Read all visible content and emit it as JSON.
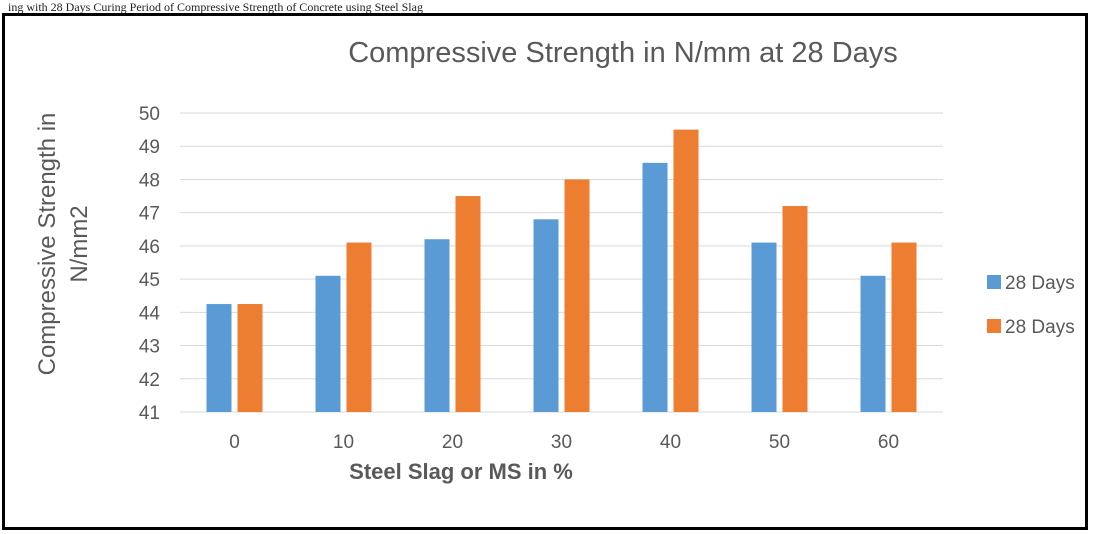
{
  "caption": "ing with 28 Days Curing Period of Compressive Strength of Concrete using Steel Slag",
  "colors": {
    "series1": "#5b9bd5",
    "series2": "#ed7d31",
    "grid": "#d9d9d9",
    "text": "#595959"
  },
  "chart_data": {
    "type": "bar",
    "title": "Compressive Strength in N/mm at 28 Days",
    "xlabel": "Steel Slag or MS  in %",
    "ylabel_lines": [
      "Compressive Strength in",
      "N/mm2"
    ],
    "categories": [
      "0",
      "10",
      "20",
      "30",
      "40",
      "50",
      "60"
    ],
    "series": [
      {
        "name": "28 Days",
        "values": [
          44.25,
          45.1,
          46.2,
          46.8,
          48.5,
          46.1,
          45.1
        ]
      },
      {
        "name": "28 Days",
        "values": [
          44.25,
          46.1,
          47.5,
          48.0,
          49.5,
          47.2,
          46.1
        ]
      }
    ],
    "yticks": [
      41,
      42,
      43,
      44,
      45,
      46,
      47,
      48,
      49,
      50
    ],
    "ylim": [
      41,
      50
    ],
    "grid": true,
    "legend_position": "right"
  }
}
